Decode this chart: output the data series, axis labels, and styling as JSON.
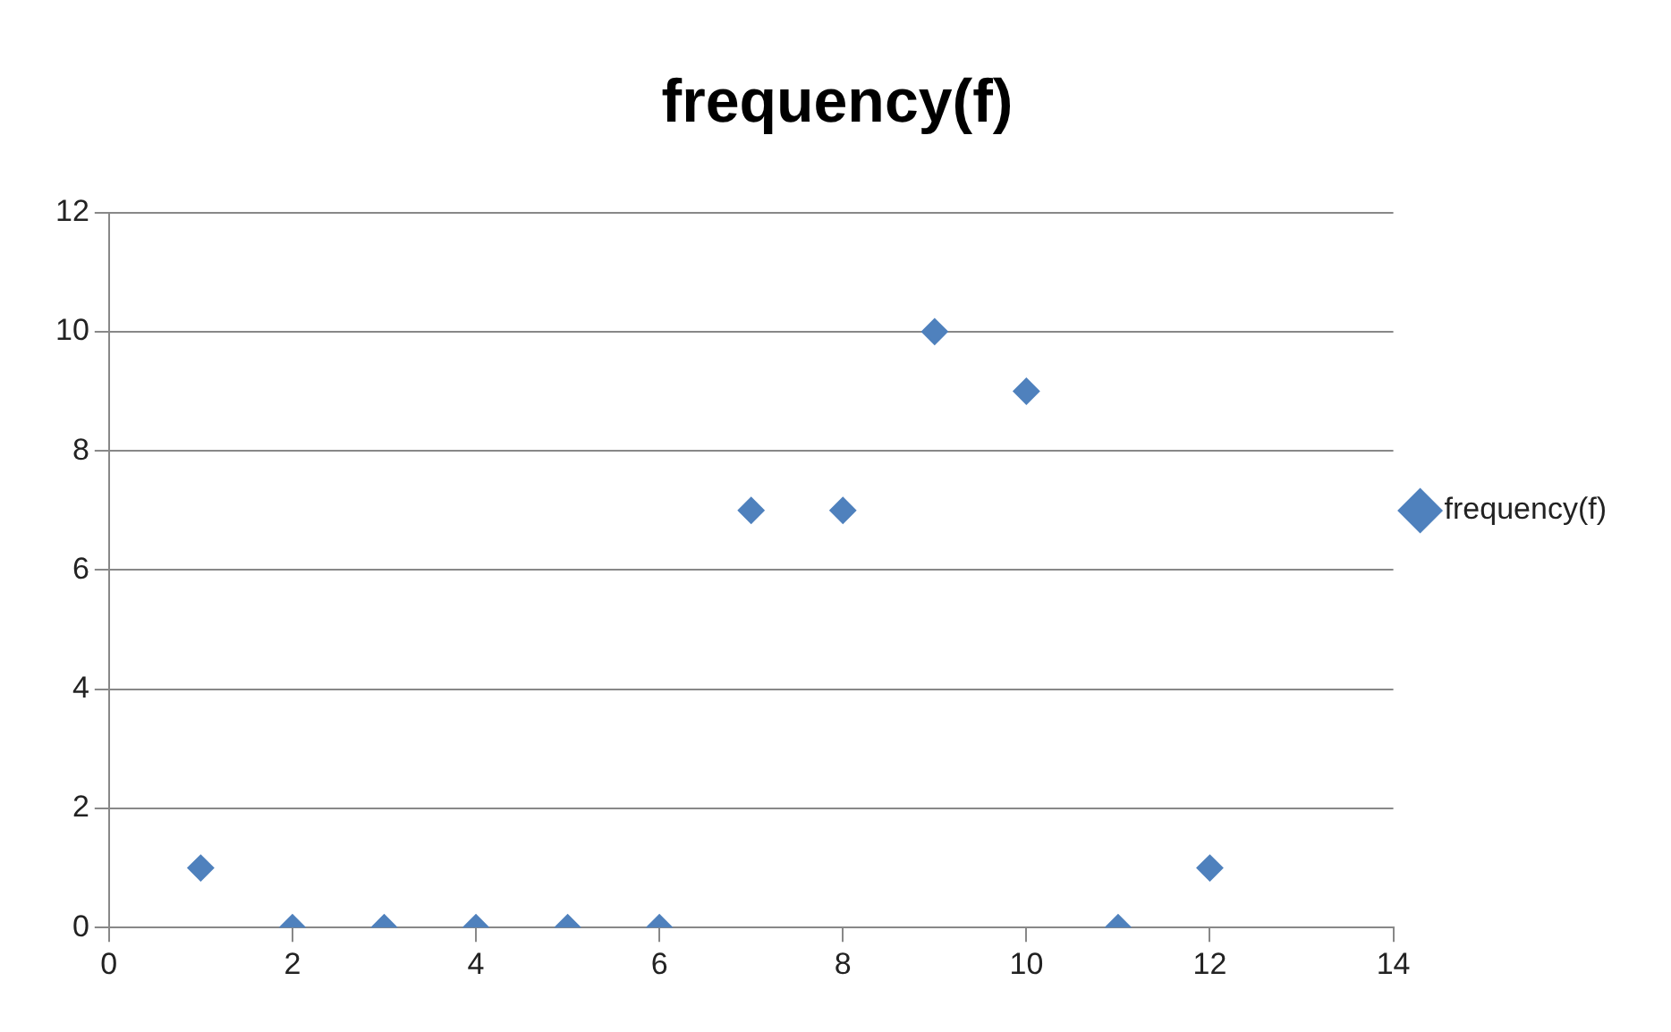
{
  "chart_data": {
    "type": "scatter",
    "title": "frequency(f)",
    "x": [
      1,
      2,
      3,
      4,
      5,
      6,
      7,
      8,
      9,
      10,
      11,
      12
    ],
    "series": [
      {
        "name": "frequency(f)",
        "color": "#4f81bd",
        "values": [
          1,
          0,
          0,
          0,
          0,
          0,
          7,
          7,
          10,
          9,
          0,
          1
        ]
      }
    ],
    "xlim": [
      0,
      14
    ],
    "xticks": [
      0,
      2,
      4,
      6,
      8,
      10,
      12,
      14
    ],
    "ylim": [
      0,
      12
    ],
    "yticks": [
      0,
      2,
      4,
      6,
      8,
      10,
      12
    ],
    "grid": "y",
    "legend": "right",
    "marker": "diamond"
  }
}
